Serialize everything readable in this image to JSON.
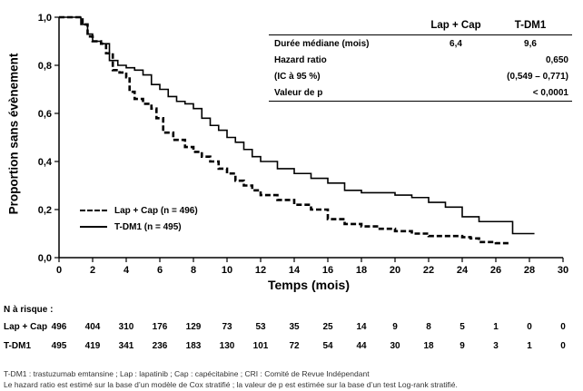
{
  "chart_data": {
    "type": "line",
    "xlabel": "Temps (mois)",
    "ylabel": "Proportion sans évènement",
    "xlim": [
      0,
      30
    ],
    "ylim": [
      0,
      1
    ],
    "xticks": [
      "0",
      "2",
      "4",
      "6",
      "8",
      "10",
      "12",
      "14",
      "16",
      "18",
      "20",
      "22",
      "24",
      "26",
      "28",
      "30"
    ],
    "yticks": [
      "0,0",
      "0,2",
      "0,4",
      "0,6",
      "0,8",
      "1,0"
    ],
    "legend_position": "bottom-left",
    "series": [
      {
        "name": "Lap + Cap (n = 496)",
        "style": "dashed",
        "points": [
          [
            0,
            1.0
          ],
          [
            1.0,
            1.0
          ],
          [
            1.4,
            0.97
          ],
          [
            1.7,
            0.92
          ],
          [
            2.0,
            0.9
          ],
          [
            2.5,
            0.89
          ],
          [
            2.8,
            0.85
          ],
          [
            3.2,
            0.78
          ],
          [
            3.6,
            0.77
          ],
          [
            4.0,
            0.75
          ],
          [
            4.2,
            0.69
          ],
          [
            4.5,
            0.66
          ],
          [
            5.0,
            0.64
          ],
          [
            5.5,
            0.62
          ],
          [
            5.8,
            0.58
          ],
          [
            6.2,
            0.52
          ],
          [
            6.8,
            0.49
          ],
          [
            7.5,
            0.46
          ],
          [
            8.0,
            0.44
          ],
          [
            8.5,
            0.42
          ],
          [
            9.0,
            0.4
          ],
          [
            9.5,
            0.37
          ],
          [
            10.0,
            0.35
          ],
          [
            10.5,
            0.32
          ],
          [
            11.0,
            0.3
          ],
          [
            11.5,
            0.28
          ],
          [
            12.0,
            0.26
          ],
          [
            13.0,
            0.24
          ],
          [
            14.0,
            0.22
          ],
          [
            15.0,
            0.2
          ],
          [
            16.0,
            0.16
          ],
          [
            17.0,
            0.14
          ],
          [
            18.0,
            0.13
          ],
          [
            19.0,
            0.12
          ],
          [
            20.0,
            0.11
          ],
          [
            21.0,
            0.1
          ],
          [
            22.0,
            0.09
          ],
          [
            23.0,
            0.09
          ],
          [
            24.0,
            0.085
          ],
          [
            24.5,
            0.08
          ],
          [
            25.0,
            0.065
          ],
          [
            26.0,
            0.06
          ],
          [
            26.8,
            0.06
          ]
        ]
      },
      {
        "name": "T-DM1 (n = 495)",
        "style": "solid",
        "points": [
          [
            0,
            1.0
          ],
          [
            1.0,
            1.0
          ],
          [
            1.3,
            0.97
          ],
          [
            1.7,
            0.93
          ],
          [
            2.0,
            0.9
          ],
          [
            2.5,
            0.89
          ],
          [
            3.0,
            0.82
          ],
          [
            3.5,
            0.8
          ],
          [
            4.0,
            0.79
          ],
          [
            4.5,
            0.78
          ],
          [
            5.0,
            0.76
          ],
          [
            5.5,
            0.72
          ],
          [
            6.0,
            0.7
          ],
          [
            6.5,
            0.67
          ],
          [
            7.0,
            0.65
          ],
          [
            7.5,
            0.64
          ],
          [
            8.0,
            0.62
          ],
          [
            8.5,
            0.58
          ],
          [
            9.0,
            0.55
          ],
          [
            9.5,
            0.53
          ],
          [
            10.0,
            0.5
          ],
          [
            10.5,
            0.48
          ],
          [
            11.0,
            0.45
          ],
          [
            11.5,
            0.42
          ],
          [
            12.0,
            0.4
          ],
          [
            13.0,
            0.37
          ],
          [
            14.0,
            0.35
          ],
          [
            15.0,
            0.33
          ],
          [
            16.0,
            0.31
          ],
          [
            17.0,
            0.28
          ],
          [
            18.0,
            0.27
          ],
          [
            19.0,
            0.27
          ],
          [
            20.0,
            0.26
          ],
          [
            21.0,
            0.25
          ],
          [
            22.0,
            0.23
          ],
          [
            23.0,
            0.21
          ],
          [
            24.0,
            0.17
          ],
          [
            25.0,
            0.15
          ],
          [
            26.0,
            0.15
          ],
          [
            27.0,
            0.15
          ],
          [
            27.0,
            0.1
          ],
          [
            28.3,
            0.1
          ]
        ]
      }
    ]
  },
  "stats_table": {
    "headers": [
      "",
      "Lap + Cap",
      "T-DM1"
    ],
    "rows": [
      [
        "Durée médiane (mois)",
        "6,4",
        "9,6"
      ],
      [
        "Hazard ratio",
        "",
        "0,650"
      ],
      [
        "(IC à 95 %)",
        "",
        "(0,549 – 0,771)"
      ],
      [
        "Valeur de p",
        "",
        "< 0,0001"
      ]
    ]
  },
  "risk": {
    "title": "N à risque :",
    "rows": [
      {
        "label": "Lap + Cap",
        "values": [
          "496",
          "404",
          "310",
          "176",
          "129",
          "73",
          "53",
          "35",
          "25",
          "14",
          "9",
          "8",
          "5",
          "1",
          "0",
          "0"
        ]
      },
      {
        "label": "T-DM1",
        "values": [
          "495",
          "419",
          "341",
          "236",
          "183",
          "130",
          "101",
          "72",
          "54",
          "44",
          "30",
          "18",
          "9",
          "3",
          "1",
          "0"
        ]
      }
    ]
  },
  "footnotes": [
    "T-DM1 : trastuzumab emtansine ; Lap : lapatinib ; Cap : capécitabine ; CRI : Comité de Revue Indépendant",
    "Le hazard ratio est estimé sur la base d’un modèle de Cox stratifié ; la valeur de p est estimée sur la base d’un test Log-rank stratifié."
  ]
}
